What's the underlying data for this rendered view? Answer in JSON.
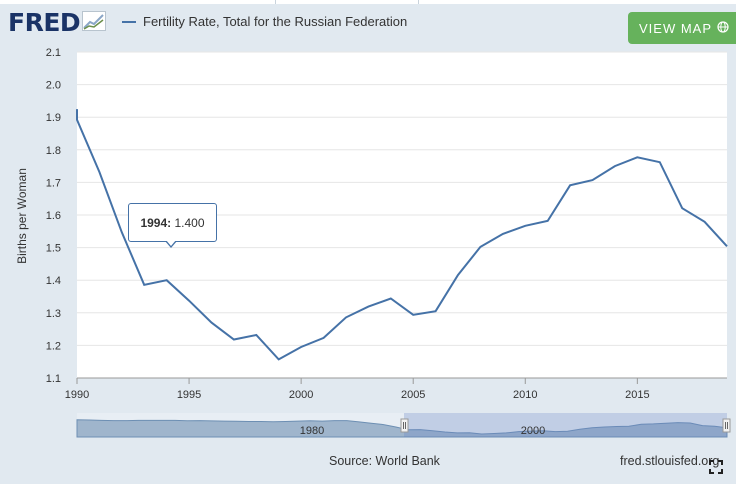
{
  "header": {
    "logo_text": "FRED",
    "legend_label": "Fertility Rate, Total for the Russian Federation",
    "view_map_label": "VIEW MAP"
  },
  "footer": {
    "source": "Source: World Bank",
    "url": "fred.stlouisfed.org"
  },
  "tooltip": {
    "year": "1994:",
    "value": "1.400"
  },
  "navigator": {
    "labels": [
      "1980",
      "2000"
    ]
  },
  "colors": {
    "series": "#4572a7",
    "view_map_bg": "#66b25c",
    "logo": "#1a3366"
  },
  "icons": {
    "logo_chart": "line-chart-icon",
    "view_map": "globe-icon",
    "fullscreen": "fullscreen-icon"
  },
  "chart_data": {
    "type": "line",
    "ylabel": "Births per Woman",
    "xlabel": "",
    "ylim": [
      1.1,
      2.1
    ],
    "xlim": [
      1990,
      2019
    ],
    "yticks": [
      "1.1",
      "1.2",
      "1.3",
      "1.4",
      "1.5",
      "1.6",
      "1.7",
      "1.8",
      "1.9",
      "2.0",
      "2.1"
    ],
    "xticks": [
      "1990",
      "1995",
      "2000",
      "2005",
      "2010",
      "2015"
    ],
    "grid": true,
    "series": [
      {
        "name": "Fertility Rate, Total for the Russian Federation",
        "x": [
          1990,
          1991,
          1992,
          1993,
          1994,
          1995,
          1996,
          1997,
          1998,
          1999,
          2000,
          2001,
          2002,
          2003,
          2004,
          2005,
          2006,
          2007,
          2008,
          2009,
          2010,
          2011,
          2012,
          2013,
          2014,
          2015,
          2016,
          2017,
          2018,
          2019
        ],
        "values": [
          1.892,
          1.732,
          1.547,
          1.386,
          1.4,
          1.337,
          1.27,
          1.218,
          1.232,
          1.157,
          1.195,
          1.223,
          1.286,
          1.319,
          1.344,
          1.294,
          1.305,
          1.416,
          1.502,
          1.542,
          1.567,
          1.582,
          1.691,
          1.707,
          1.75,
          1.777,
          1.762,
          1.621,
          1.579,
          1.504
        ]
      }
    ],
    "navigator_series": [
      1.93,
      1.92,
      1.9,
      1.89,
      1.89,
      1.9,
      1.9,
      1.9,
      1.9,
      1.88,
      1.89,
      1.87,
      1.86,
      1.85,
      1.84,
      1.84,
      1.83,
      1.84,
      1.86,
      1.88,
      1.86,
      1.89,
      1.89,
      1.82,
      1.75,
      1.67,
      1.54,
      1.39,
      1.4,
      1.34,
      1.27,
      1.22,
      1.23,
      1.16,
      1.19,
      1.22,
      1.29,
      1.32,
      1.34,
      1.29,
      1.31,
      1.42,
      1.5,
      1.54,
      1.57,
      1.58,
      1.69,
      1.71,
      1.75,
      1.78,
      1.76,
      1.62,
      1.58,
      1.5
    ]
  }
}
